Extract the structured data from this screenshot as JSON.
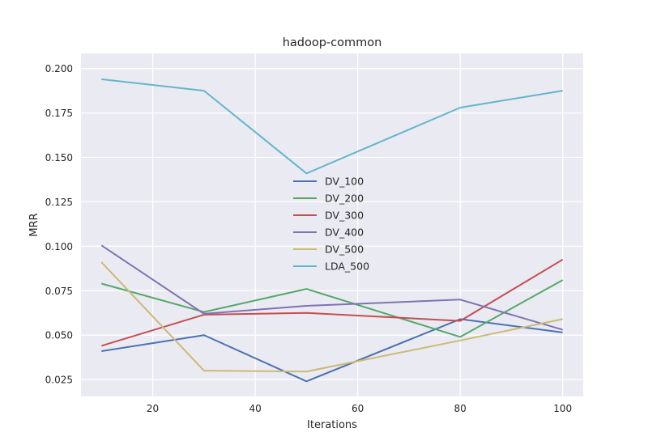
{
  "chart_data": {
    "type": "line",
    "title": "hadoop-common",
    "xlabel": "Iterations",
    "ylabel": "MRR",
    "xlim": [
      6,
      104
    ],
    "ylim": [
      0.0155,
      0.2085
    ],
    "xticks": [
      20,
      40,
      60,
      80,
      100
    ],
    "yticks": [
      0.025,
      0.05,
      0.075,
      0.1,
      0.125,
      0.15,
      0.175,
      0.2
    ],
    "ytick_labels": [
      "0.025",
      "0.050",
      "0.075",
      "0.100",
      "0.125",
      "0.150",
      "0.175",
      "0.200"
    ],
    "grid": true,
    "legend_position": "center",
    "x": [
      10,
      30,
      50,
      80,
      100
    ],
    "series": [
      {
        "name": "DV_100",
        "color": "#4c72b0",
        "values": [
          0.041,
          0.05,
          0.024,
          0.059,
          0.0515
        ]
      },
      {
        "name": "DV_200",
        "color": "#55a868",
        "values": [
          0.079,
          0.063,
          0.076,
          0.049,
          0.081
        ]
      },
      {
        "name": "DV_300",
        "color": "#c44e52",
        "values": [
          0.044,
          0.0615,
          0.0625,
          0.058,
          0.0925
        ]
      },
      {
        "name": "DV_400",
        "color": "#8172b2",
        "values": [
          0.1005,
          0.062,
          0.0665,
          0.07,
          0.053
        ]
      },
      {
        "name": "DV_500",
        "color": "#ccb974",
        "values": [
          0.091,
          0.03,
          0.0295,
          0.047,
          0.059
        ]
      },
      {
        "name": "LDA_500",
        "color": "#64b5cd",
        "values": [
          0.194,
          0.1875,
          0.141,
          0.178,
          0.1875
        ]
      }
    ]
  }
}
